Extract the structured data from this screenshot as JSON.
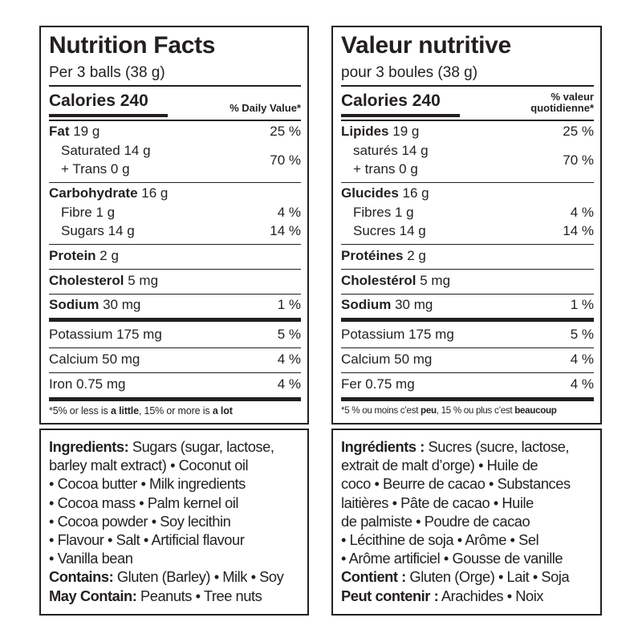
{
  "en": {
    "title": "Nutrition Facts",
    "serving": "Per 3 balls (38 g)",
    "calories": "Calories 240",
    "dv_header": "% Daily Value*",
    "fat_label": "Fat",
    "fat_amount": " 19 g",
    "fat_pct": "25 %",
    "sat_label": "Saturated 14 g",
    "trans_label": "+ Trans 0 g",
    "sat_trans_pct": "70 %",
    "carb_label": "Carbohydrate",
    "carb_amount": " 16 g",
    "fibre_label": "Fibre 1 g",
    "fibre_pct": "4 %",
    "sugars_label": "Sugars 14 g",
    "sugars_pct": "14 %",
    "protein_label": "Protein",
    "protein_amount": " 2 g",
    "chol_label": "Cholesterol",
    "chol_amount": " 5 mg",
    "sodium_label": "Sodium",
    "sodium_amount": " 30 mg",
    "sodium_pct": "1 %",
    "potassium_label": "Potassium 175 mg",
    "potassium_pct": "5 %",
    "calcium_label": "Calcium 50 mg",
    "calcium_pct": "4 %",
    "iron_label": "Iron 0.75 mg",
    "iron_pct": "4 %",
    "foot_a": "*5% or less is ",
    "foot_b": "a little",
    "foot_c": ", 15% or more is ",
    "foot_d": "a lot",
    "ingredients": {
      "l1_bold": "Ingredients:",
      "l1": " Sugars (sugar, lactose,",
      "l2": "barley malt extract) • Coconut oil",
      "l3": "• Cocoa butter • Milk ingredients",
      "l4": "• Cocoa mass • Palm kernel oil",
      "l5": "• Cocoa powder • Soy lecithin",
      "l6": "• Flavour • Salt • Artificial flavour",
      "l7": "• Vanilla bean",
      "contains_bold": "Contains:",
      "contains": " Gluten (Barley) • Milk • Soy",
      "may_bold": "May Contain:",
      "may": " Peanuts • Tree nuts"
    }
  },
  "fr": {
    "title": "Valeur nutritive",
    "serving": "pour 3 boules (38 g)",
    "calories": "Calories 240",
    "dv_header_1": "% valeur",
    "dv_header_2": "quotidienne*",
    "fat_label": "Lipides",
    "fat_amount": " 19 g",
    "fat_pct": "25 %",
    "sat_label": "saturés 14 g",
    "trans_label": "+ trans 0 g",
    "sat_trans_pct": "70 %",
    "carb_label": "Glucides",
    "carb_amount": " 16 g",
    "fibre_label": "Fibres 1 g",
    "fibre_pct": "4 %",
    "sugars_label": "Sucres 14 g",
    "sugars_pct": "14 %",
    "protein_label": "Protéines",
    "protein_amount": " 2 g",
    "chol_label": "Cholestérol",
    "chol_amount": " 5 mg",
    "sodium_label": "Sodium",
    "sodium_amount": " 30 mg",
    "sodium_pct": "1 %",
    "potassium_label": "Potassium 175 mg",
    "potassium_pct": "5 %",
    "calcium_label": "Calcium 50 mg",
    "calcium_pct": "4 %",
    "iron_label": "Fer 0.75 mg",
    "iron_pct": "4 %",
    "foot_a": "*5 % ou moins c’est ",
    "foot_b": "peu",
    "foot_c": ", 15 % ou plus c’est ",
    "foot_d": "beaucoup",
    "ingredients": {
      "l1_bold": "Ingrédients :",
      "l1": " Sucres (sucre, lactose,",
      "l2": "extrait de malt d’orge) • Huile de",
      "l3": "coco • Beurre de cacao • Substances",
      "l4": "laitières • Pâte de cacao • Huile",
      "l5": "de palmiste • Poudre de cacao",
      "l6": "• Lécithine de soja • Arôme • Sel",
      "l7": "• Arôme artificiel • Gousse de vanille",
      "contains_bold": "Contient :",
      "contains": " Gluten (Orge) • Lait • Soja",
      "may_bold": "Peut contenir :",
      "may": " Arachides • Noix"
    }
  }
}
